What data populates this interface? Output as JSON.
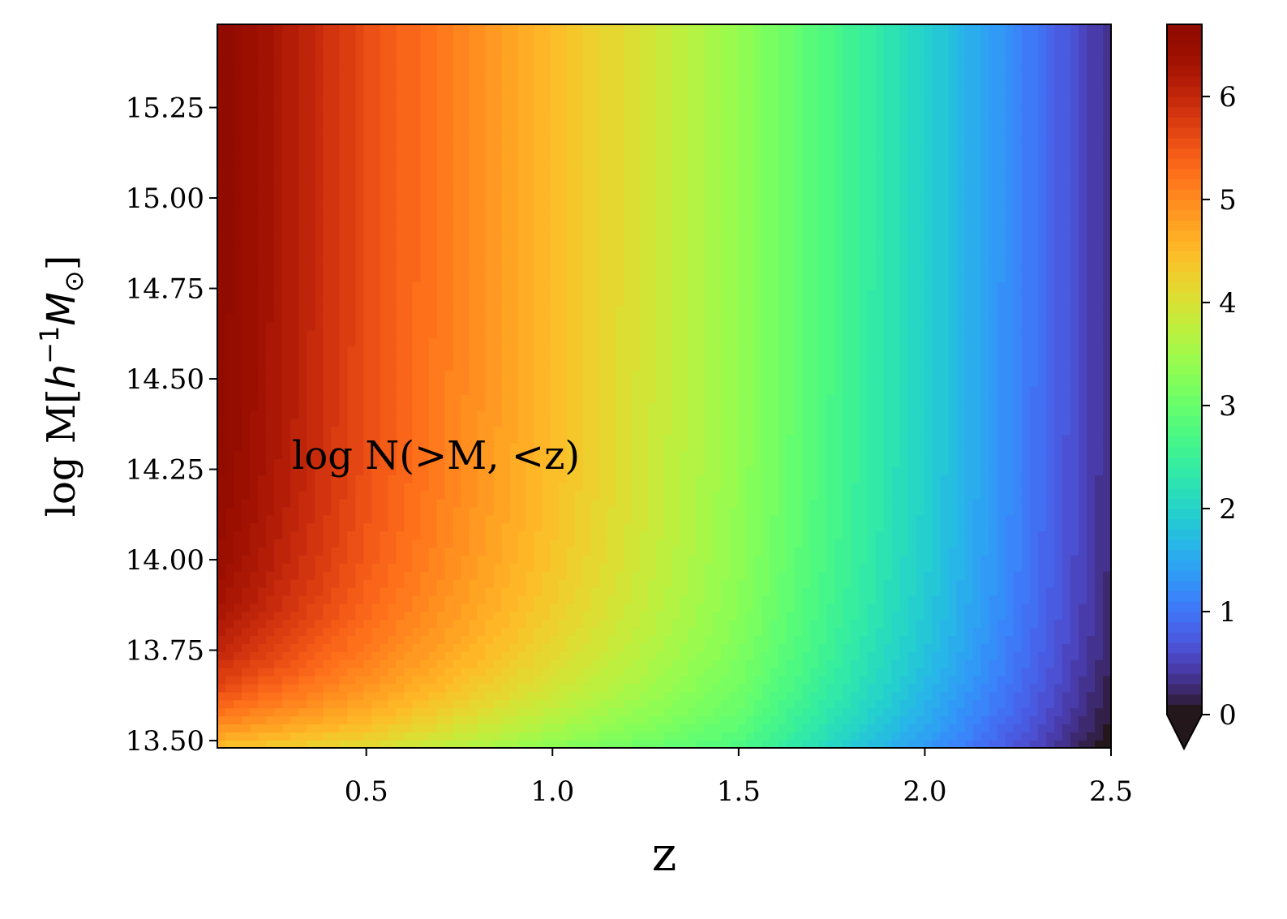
{
  "chart_data": {
    "type": "heatmap",
    "style": "filled-contour",
    "title": "",
    "annotation": "log N(>M, <z)",
    "xlabel": "z",
    "ylabel_parts": [
      "log M[",
      "h",
      "−1",
      "M",
      "⊙",
      "]"
    ],
    "xlim": [
      0.1,
      2.5
    ],
    "ylim": [
      13.48,
      15.48
    ],
    "xticks": [
      0.5,
      1.0,
      1.5,
      2.0,
      2.5
    ],
    "xtick_labels": [
      "0.5",
      "1.0",
      "1.5",
      "2.0",
      "2.5"
    ],
    "yticks": [
      13.5,
      13.75,
      14.0,
      14.25,
      14.5,
      14.75,
      15.0,
      15.25
    ],
    "ytick_labels": [
      "13.50",
      "13.75",
      "14.00",
      "14.25",
      "14.50",
      "14.75",
      "15.00",
      "15.25"
    ],
    "grid": false,
    "colormap": "turbo",
    "colorbar": {
      "range": [
        0,
        6.7
      ],
      "ticks": [
        0,
        1,
        2,
        3,
        4,
        5,
        6
      ],
      "tick_labels": [
        "0",
        "1",
        "2",
        "3",
        "4",
        "5",
        "6"
      ],
      "extend": "min"
    },
    "approx_values": {
      "z": [
        0.1,
        0.5,
        1.0,
        1.5,
        2.0,
        2.5
      ],
      "log_N_at_high_mass": [
        6.7,
        5.6,
        4.5,
        3.4,
        2.0,
        0.3
      ],
      "log_N_at_logM_13.5": [
        4.6,
        4.2,
        3.4,
        2.8,
        1.4,
        0.0
      ]
    }
  }
}
